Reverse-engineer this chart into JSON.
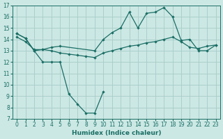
{
  "xlabel": "Humidex (Indice chaleur)",
  "bg_color": "#cce8e4",
  "grid_color": "#aacfcc",
  "line_color": "#1a6e65",
  "xlim": [
    -0.5,
    23.5
  ],
  "ylim": [
    7,
    17
  ],
  "xticks": [
    0,
    1,
    2,
    3,
    4,
    5,
    6,
    7,
    8,
    9,
    10,
    11,
    12,
    13,
    14,
    15,
    16,
    17,
    18,
    19,
    20,
    21,
    22,
    23
  ],
  "yticks": [
    7,
    8,
    9,
    10,
    11,
    12,
    13,
    14,
    15,
    16,
    17
  ],
  "series": [
    {
      "x": [
        0,
        1,
        2,
        3,
        4,
        5,
        6,
        7,
        8,
        9,
        10
      ],
      "y": [
        14.5,
        14.1,
        13.0,
        12.0,
        12.0,
        12.0,
        9.2,
        8.3,
        7.5,
        7.5,
        9.4
      ]
    },
    {
      "x": [
        0,
        1,
        2,
        3,
        4,
        5,
        9,
        10,
        11,
        12,
        13,
        14,
        15,
        16,
        17,
        18,
        19,
        20,
        21,
        22,
        23
      ],
      "y": [
        14.5,
        14.1,
        13.0,
        13.1,
        13.3,
        13.4,
        13.0,
        14.0,
        14.6,
        15.0,
        16.4,
        15.0,
        16.3,
        16.4,
        16.8,
        16.0,
        13.9,
        14.0,
        13.0,
        13.0,
        13.5
      ]
    },
    {
      "x": [
        0,
        1,
        2,
        3,
        4,
        5,
        6,
        7,
        8,
        9,
        10,
        11,
        12,
        13,
        14,
        15,
        16,
        17,
        18,
        19,
        20,
        21,
        22,
        23
      ],
      "y": [
        14.2,
        13.8,
        13.1,
        13.1,
        13.0,
        12.8,
        12.7,
        12.6,
        12.5,
        12.4,
        12.8,
        13.0,
        13.2,
        13.4,
        13.5,
        13.7,
        13.8,
        14.0,
        14.2,
        13.8,
        13.3,
        13.2,
        13.4,
        13.5
      ]
    }
  ]
}
